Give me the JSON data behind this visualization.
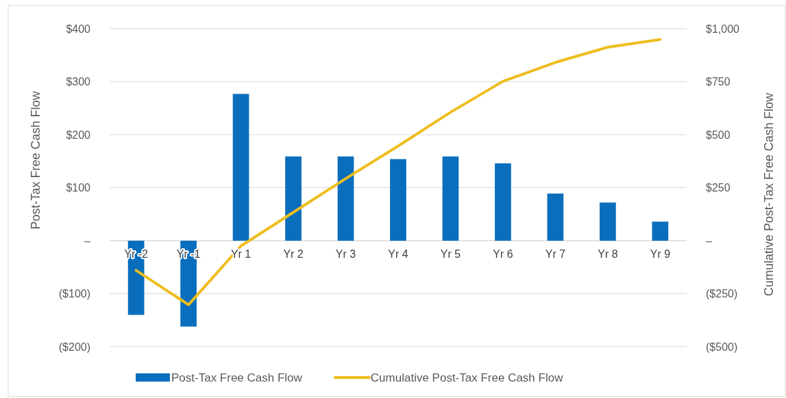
{
  "chart_data": {
    "type": "bar",
    "categories": [
      "Yr -2",
      "Yr -1",
      "Yr 1",
      "Yr 2",
      "Yr 3",
      "Yr 4",
      "Yr 5",
      "Yr 6",
      "Yr 7",
      "Yr 8",
      "Yr 9"
    ],
    "series": [
      {
        "name": "Post-Tax Free Cash Flow",
        "color": "#0a6ebd",
        "values": [
          -140,
          -162,
          277,
          159,
          159,
          154,
          159,
          146,
          89,
          72,
          36
        ]
      },
      {
        "name": "Cumulative Post-Tax Free Cash Flow",
        "type": "line",
        "axis": "y2",
        "color": "#eebd1e",
        "values": [
          -140,
          -302,
          -25,
          134,
          293,
          447,
          606,
          752,
          841,
          913,
          949
        ]
      }
    ],
    "ylabel": "Post-Tax  Free Cash Flow",
    "y2label": "Cumulative  Post-Tax  Free Cash Flow",
    "ylim": [
      -200,
      400
    ],
    "yticks": [
      {
        "value": -200,
        "label": "($200)"
      },
      {
        "value": -100,
        "label": "($100)"
      },
      {
        "value": 0,
        "label": "–"
      },
      {
        "value": 100,
        "label": "$100"
      },
      {
        "value": 200,
        "label": "$200"
      },
      {
        "value": 300,
        "label": "$300"
      },
      {
        "value": 400,
        "label": "$400"
      }
    ],
    "y2lim": [
      -500,
      1000
    ],
    "y2ticks": [
      {
        "value": -500,
        "label": "($500)"
      },
      {
        "value": -250,
        "label": "($250)"
      },
      {
        "value": 0,
        "label": "–"
      },
      {
        "value": 250,
        "label": "$250"
      },
      {
        "value": 500,
        "label": "$500"
      },
      {
        "value": 750,
        "label": "$750"
      },
      {
        "value": 1000,
        "label": "$1,000"
      }
    ],
    "grid": "y",
    "legend": "bottom",
    "marker": "none",
    "line_style": "solid"
  }
}
